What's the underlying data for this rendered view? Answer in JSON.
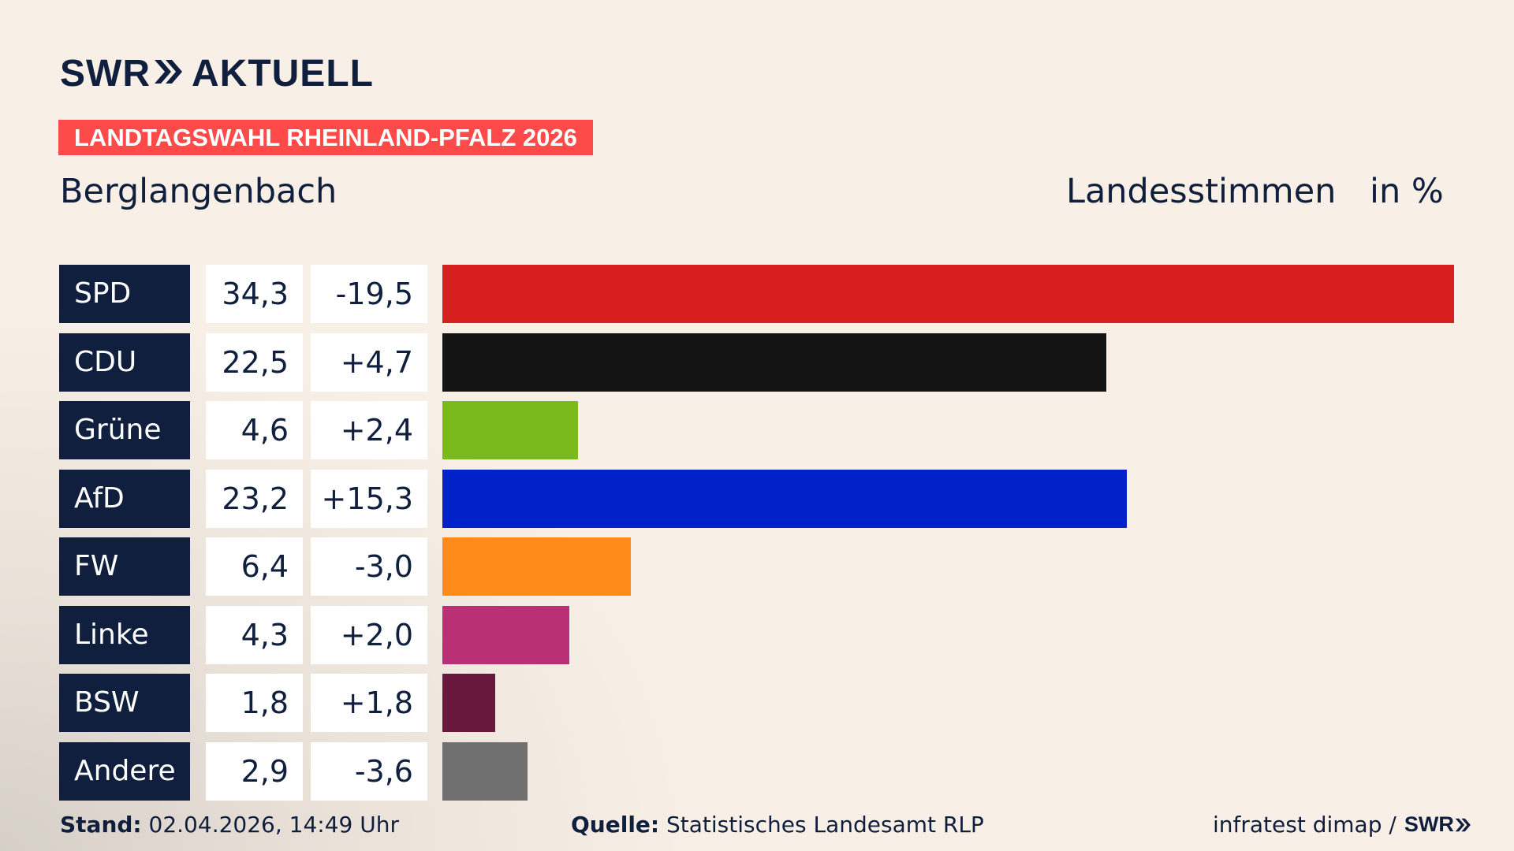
{
  "header": {
    "logo_text_left": "SWR",
    "logo_text_right": "AKTUELL",
    "tag": "LANDTAGSWAHL RHEINLAND-PFALZ 2026",
    "region": "Berglangenbach",
    "measure": "Landesstimmen",
    "unit": "in %"
  },
  "chart_data": {
    "type": "bar",
    "orientation": "horizontal",
    "categories": [
      "SPD",
      "CDU",
      "Grüne",
      "AfD",
      "FW",
      "Linke",
      "BSW",
      "Andere"
    ],
    "values": [
      34.3,
      22.5,
      4.6,
      23.2,
      6.4,
      4.3,
      1.8,
      2.9
    ],
    "values_label": [
      "34,3",
      "22,5",
      "4,6",
      "23,2",
      "6,4",
      "4,3",
      "1,8",
      "2,9"
    ],
    "diff_label": [
      "-19,5",
      "+4,7",
      "+2,4",
      "+15,3",
      "-3,0",
      "+2,0",
      "+1,8",
      "-3,6"
    ],
    "colors": [
      "#d81f1f",
      "#141414",
      "#7aba1c",
      "#0022c8",
      "#ff8c18",
      "#b93076",
      "#6a173e",
      "#707070"
    ],
    "xlim": [
      0,
      34.3
    ]
  },
  "footer": {
    "stand_label": "Stand:",
    "stand_value": "02.04.2026, 14:49 Uhr",
    "source_label": "Quelle:",
    "source_value": "Statistisches Landesamt RLP",
    "credit": "infratest dimap /",
    "credit_logo": "SWR"
  },
  "colors": {
    "navy": "#0f1f3d",
    "accent": "#ff4a4a",
    "background": "#f8f0e6"
  }
}
